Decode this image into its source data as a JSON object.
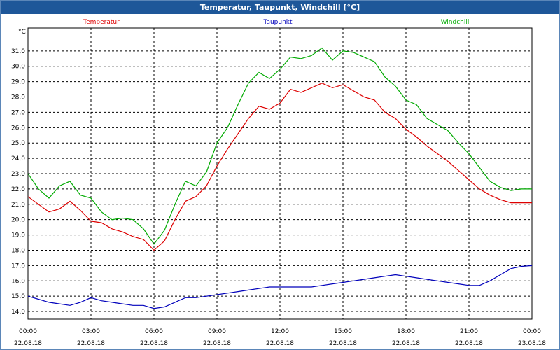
{
  "colors": {
    "title_bg": "#1e5799",
    "grid": "#000000"
  },
  "chart_data": {
    "type": "line",
    "title": "Temperatur, Taupunkt, Windchill [°C]",
    "ylabel": "°C",
    "ylim": [
      13.5,
      32.5
    ],
    "xlim": [
      0,
      24
    ],
    "y_ticks": [
      "14,0",
      "15,0",
      "16,0",
      "17,0",
      "18,0",
      "19,0",
      "20,0",
      "21,0",
      "22,0",
      "23,0",
      "24,0",
      "25,0",
      "26,0",
      "27,0",
      "28,0",
      "29,0",
      "30,0",
      "31,0"
    ],
    "x_ticks": [
      {
        "time": "00:00",
        "date": "22.08.18"
      },
      {
        "time": "03:00",
        "date": "22.08.18"
      },
      {
        "time": "06:00",
        "date": "22.08.18"
      },
      {
        "time": "09:00",
        "date": "22.08.18"
      },
      {
        "time": "12:00",
        "date": "22.08.18"
      },
      {
        "time": "15:00",
        "date": "22.08.18"
      },
      {
        "time": "18:00",
        "date": "22.08.18"
      },
      {
        "time": "21:00",
        "date": "22.08.18"
      },
      {
        "time": "00:00",
        "date": "23.08.18"
      }
    ],
    "series": [
      {
        "name": "Temperatur",
        "color": "#dd0000",
        "x": [
          0,
          0.5,
          1,
          1.5,
          2,
          2.5,
          3,
          3.5,
          4,
          4.5,
          5,
          5.5,
          6,
          6.5,
          7,
          7.5,
          8,
          8.5,
          9,
          9.5,
          10,
          10.5,
          11,
          11.5,
          12,
          12.5,
          13,
          13.5,
          14,
          14.5,
          15,
          15.5,
          16,
          16.5,
          17,
          17.5,
          18,
          18.5,
          19,
          19.5,
          20,
          20.5,
          21,
          21.5,
          22,
          22.5,
          23,
          23.5,
          24
        ],
        "values": [
          21.5,
          21.0,
          20.5,
          20.7,
          21.2,
          20.6,
          19.9,
          19.8,
          19.4,
          19.2,
          18.9,
          18.7,
          18.0,
          18.6,
          20.0,
          21.2,
          21.5,
          22.2,
          23.5,
          24.6,
          25.6,
          26.6,
          27.4,
          27.2,
          27.6,
          28.5,
          28.3,
          28.6,
          28.9,
          28.6,
          28.8,
          28.4,
          28.0,
          27.8,
          27.0,
          26.6,
          25.9,
          25.4,
          24.8,
          24.3,
          23.8,
          23.2,
          22.6,
          22.0,
          21.6,
          21.3,
          21.1,
          21.1,
          21.1
        ]
      },
      {
        "name": "Taupunkt",
        "color": "#0000bb",
        "x": [
          0,
          0.5,
          1,
          1.5,
          2,
          2.5,
          3,
          3.5,
          4,
          4.5,
          5,
          5.5,
          6,
          6.5,
          7,
          7.5,
          8,
          8.5,
          9,
          9.5,
          10,
          10.5,
          11,
          11.5,
          12,
          12.5,
          13,
          13.5,
          14,
          14.5,
          15,
          15.5,
          16,
          16.5,
          17,
          17.5,
          18,
          18.5,
          19,
          19.5,
          20,
          20.5,
          21,
          21.5,
          22,
          22.5,
          23,
          23.5,
          24
        ],
        "values": [
          15.0,
          14.8,
          14.6,
          14.5,
          14.4,
          14.6,
          14.9,
          14.7,
          14.6,
          14.5,
          14.4,
          14.4,
          14.2,
          14.3,
          14.6,
          14.9,
          14.9,
          15.0,
          15.1,
          15.2,
          15.3,
          15.4,
          15.5,
          15.6,
          15.6,
          15.6,
          15.6,
          15.6,
          15.7,
          15.8,
          15.9,
          16.0,
          16.1,
          16.2,
          16.3,
          16.4,
          16.3,
          16.2,
          16.1,
          16.0,
          15.9,
          15.8,
          15.7,
          15.7,
          16.0,
          16.4,
          16.8,
          16.95,
          17.0
        ]
      },
      {
        "name": "Windchill",
        "color": "#00aa00",
        "x": [
          0,
          0.5,
          1,
          1.5,
          2,
          2.5,
          3,
          3.5,
          4,
          4.5,
          5,
          5.5,
          6,
          6.5,
          7,
          7.5,
          8,
          8.5,
          9,
          9.5,
          10,
          10.5,
          11,
          11.5,
          12,
          12.5,
          13,
          13.5,
          14,
          14.5,
          15,
          15.5,
          16,
          16.5,
          17,
          17.5,
          18,
          18.5,
          19,
          19.5,
          20,
          20.5,
          21,
          21.5,
          22,
          22.5,
          23,
          23.5,
          24
        ],
        "values": [
          23.0,
          22.0,
          21.4,
          22.2,
          22.5,
          21.6,
          21.4,
          20.5,
          20.0,
          20.1,
          20.0,
          19.4,
          18.4,
          19.3,
          21.0,
          22.5,
          22.2,
          23.1,
          25.0,
          26.0,
          27.5,
          28.9,
          29.6,
          29.2,
          29.8,
          30.6,
          30.5,
          30.7,
          31.2,
          30.4,
          31.0,
          30.9,
          30.6,
          30.3,
          29.3,
          28.7,
          27.8,
          27.5,
          26.6,
          26.2,
          25.8,
          25.0,
          24.3,
          23.4,
          22.5,
          22.1,
          21.9,
          22.0,
          22.0
        ]
      }
    ]
  }
}
